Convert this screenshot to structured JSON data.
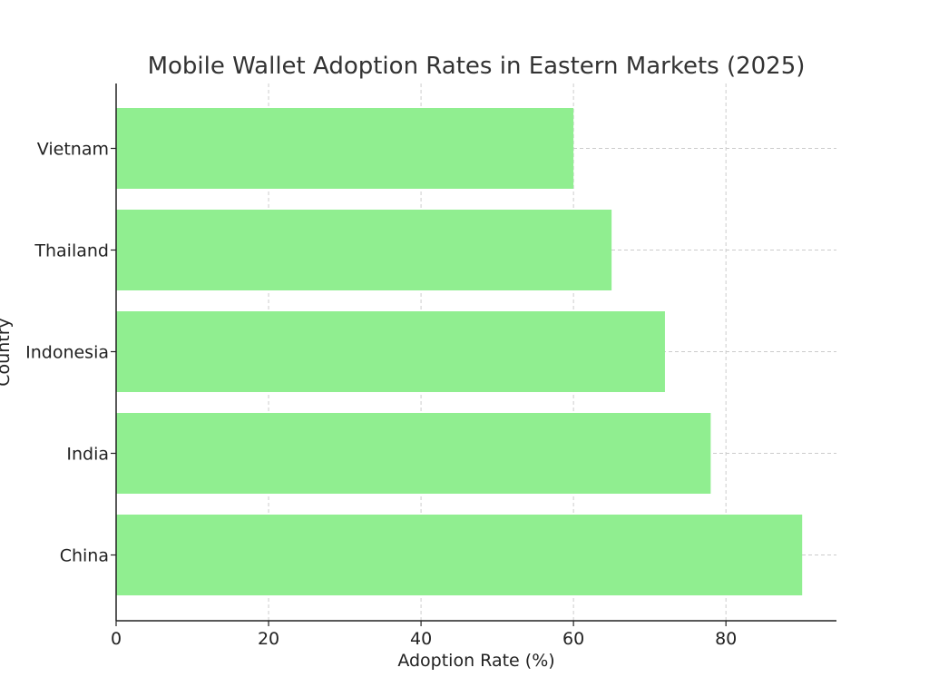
{
  "chart_data": {
    "type": "bar",
    "orientation": "horizontal",
    "title": "Mobile Wallet Adoption Rates in Eastern Markets (2025)",
    "xlabel": "Adoption Rate (%)",
    "ylabel": "Country",
    "categories": [
      "China",
      "India",
      "Indonesia",
      "Thailand",
      "Vietnam"
    ],
    "values": [
      90,
      78,
      72,
      65,
      60
    ],
    "xlim": [
      0,
      94.5
    ],
    "xticks": [
      0,
      20,
      40,
      60,
      80
    ],
    "grid": true,
    "bar_color": "#90ee90"
  }
}
